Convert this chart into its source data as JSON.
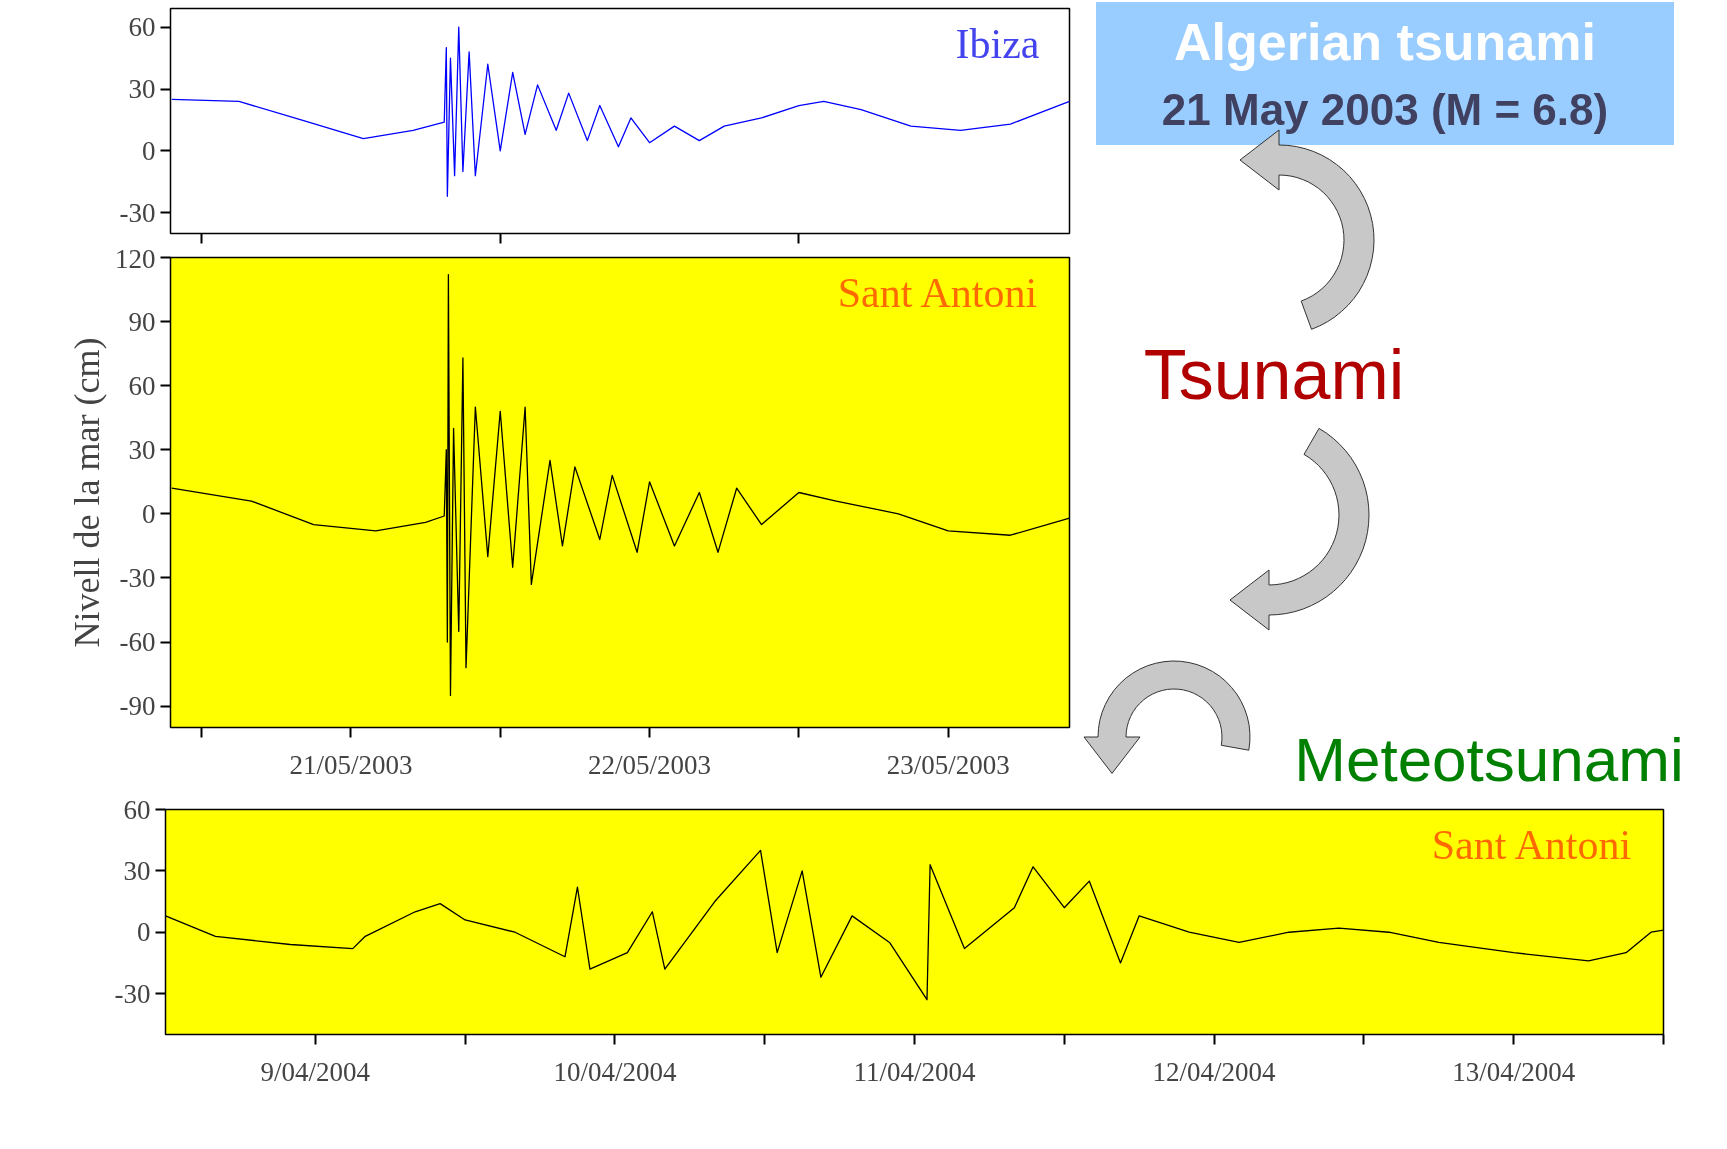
{
  "chart_data": [
    {
      "type": "line",
      "annotations": [
        "Ibiza"
      ],
      "xlim": [
        "2003-05-20T21:30",
        "2003-05-23T21:45"
      ],
      "ylim": [
        -40,
        69
      ],
      "yticks": [
        -30,
        0,
        30,
        60
      ],
      "xticks": [
        {
          "value": "2003-05-21T00:00",
          "label": null
        },
        {
          "value": "2003-05-22T00:00",
          "label": null
        },
        {
          "value": "2003-05-23T00:00",
          "label": null
        }
      ],
      "tick_labels": "y",
      "grid": false,
      "marker": "none",
      "line_style": "solid",
      "x": [
        "2003-05-20T21:36",
        "2003-05-21T03:00",
        "2003-05-21T08:00",
        "2003-05-21T13:00",
        "2003-05-21T17:00",
        "2003-05-21T19:30",
        "2003-05-21T19:40",
        "2003-05-21T19:45",
        "2003-05-21T20:00",
        "2003-05-21T20:20",
        "2003-05-21T20:40",
        "2003-05-21T21:00",
        "2003-05-21T21:30",
        "2003-05-21T22:00",
        "2003-05-21T23:00",
        "2003-05-22T00:00",
        "2003-05-22T01:00",
        "2003-05-22T02:00",
        "2003-05-22T03:00",
        "2003-05-22T04:30",
        "2003-05-22T05:30",
        "2003-05-22T07:00",
        "2003-05-22T08:00",
        "2003-05-22T09:30",
        "2003-05-22T10:30",
        "2003-05-22T12:00",
        "2003-05-22T14:00",
        "2003-05-22T16:00",
        "2003-05-22T18:00",
        "2003-05-22T21:00",
        "2003-05-23T00:00",
        "2003-05-23T02:00",
        "2003-05-23T05:00",
        "2003-05-23T09:00",
        "2003-05-23T13:00",
        "2003-05-23T17:00",
        "2003-05-23T21:45"
      ],
      "series": [
        {
          "color": "#0000ff",
          "values": [
            25,
            24,
            15,
            6,
            10,
            14,
            50,
            -22,
            45,
            -12,
            60,
            -10,
            48,
            -12,
            42,
            0,
            38,
            8,
            32,
            10,
            28,
            5,
            22,
            2,
            16,
            4,
            12,
            5,
            12,
            16,
            22,
            24,
            20,
            12,
            10,
            13,
            24
          ]
        }
      ]
    },
    {
      "type": "line",
      "annotations": [
        "Sant Antoni"
      ],
      "ylabel": "Nivell de la mar (cm)",
      "xlim": [
        "2003-05-20T21:30",
        "2003-05-23T21:45"
      ],
      "ylim": [
        -100,
        120
      ],
      "yticks": [
        -90,
        -60,
        -30,
        0,
        30,
        60,
        90,
        120
      ],
      "xticks": [
        {
          "value": "2003-05-21T00:00",
          "label": null
        },
        {
          "value": "2003-05-21T12:00",
          "label": "21/05/2003"
        },
        {
          "value": "2003-05-22T00:00",
          "label": null
        },
        {
          "value": "2003-05-22T12:00",
          "label": "22/05/2003"
        },
        {
          "value": "2003-05-23T00:00",
          "label": null
        },
        {
          "value": "2003-05-23T12:00",
          "label": "23/05/2003"
        }
      ],
      "grid": false,
      "marker": "none",
      "line_style": "solid",
      "x": [
        "2003-05-20T21:36",
        "2003-05-21T04:00",
        "2003-05-21T09:00",
        "2003-05-21T14:00",
        "2003-05-21T18:00",
        "2003-05-21T19:30",
        "2003-05-21T19:40",
        "2003-05-21T19:45",
        "2003-05-21T19:50",
        "2003-05-21T20:00",
        "2003-05-21T20:15",
        "2003-05-21T20:40",
        "2003-05-21T21:00",
        "2003-05-21T21:15",
        "2003-05-21T22:00",
        "2003-05-21T23:00",
        "2003-05-22T00:00",
        "2003-05-22T01:00",
        "2003-05-22T02:00",
        "2003-05-22T02:30",
        "2003-05-22T04:00",
        "2003-05-22T05:00",
        "2003-05-22T06:00",
        "2003-05-22T08:00",
        "2003-05-22T09:00",
        "2003-05-22T11:00",
        "2003-05-22T12:00",
        "2003-05-22T14:00",
        "2003-05-22T16:00",
        "2003-05-22T17:30",
        "2003-05-22T19:00",
        "2003-05-22T21:00",
        "2003-05-23T00:00",
        "2003-05-23T03:00",
        "2003-05-23T08:00",
        "2003-05-23T12:00",
        "2003-05-23T17:00",
        "2003-05-23T21:45"
      ],
      "series": [
        {
          "color": "#000000",
          "values": [
            12,
            6,
            -5,
            -8,
            -4,
            -1,
            30,
            -60,
            112,
            -85,
            40,
            -55,
            73,
            -72,
            50,
            -20,
            48,
            -25,
            50,
            -33,
            25,
            -15,
            22,
            -12,
            18,
            -18,
            15,
            -15,
            10,
            -18,
            12,
            -5,
            10,
            6,
            0,
            -8,
            -10,
            -2
          ]
        }
      ]
    },
    {
      "type": "line",
      "annotations": [
        "Sant Antoni"
      ],
      "xlim": [
        "2004-04-09T00:00",
        "2004-04-14T00:00"
      ],
      "ylim": [
        -50,
        60
      ],
      "yticks": [
        -30,
        0,
        30,
        60
      ],
      "xticks": [
        {
          "value": "2004-04-09T12:00",
          "label": "9/04/2004"
        },
        {
          "value": "2004-04-10T00:00",
          "label": null
        },
        {
          "value": "2004-04-10T12:00",
          "label": "10/04/2004"
        },
        {
          "value": "2004-04-11T00:00",
          "label": null
        },
        {
          "value": "2004-04-11T12:00",
          "label": "11/04/2004"
        },
        {
          "value": "2004-04-12T00:00",
          "label": null
        },
        {
          "value": "2004-04-12T12:00",
          "label": "12/04/2004"
        },
        {
          "value": "2004-04-13T00:00",
          "label": null
        },
        {
          "value": "2004-04-13T12:00",
          "label": "13/04/2004"
        },
        {
          "value": "2004-04-14T00:00",
          "label": null
        }
      ],
      "grid": false,
      "marker": "none",
      "line_style": "solid",
      "x": [
        "2004-04-09T00:00",
        "2004-04-09T04:00",
        "2004-04-09T10:00",
        "2004-04-09T15:00",
        "2004-04-09T16:00",
        "2004-04-09T20:00",
        "2004-04-09T22:00",
        "2004-04-10T00:00",
        "2004-04-10T04:00",
        "2004-04-10T08:00",
        "2004-04-10T09:00",
        "2004-04-10T10:00",
        "2004-04-10T13:00",
        "2004-04-10T15:00",
        "2004-04-10T16:00",
        "2004-04-10T20:00",
        "2004-04-10T23:40",
        "2004-04-11T01:00",
        "2004-04-11T03:00",
        "2004-04-11T04:30",
        "2004-04-11T07:00",
        "2004-04-11T10:00",
        "2004-04-11T13:00",
        "2004-04-11T13:15",
        "2004-04-11T16:00",
        "2004-04-11T20:00",
        "2004-04-11T21:30",
        "2004-04-12T00:00",
        "2004-04-12T02:00",
        "2004-04-12T04:30",
        "2004-04-12T06:00",
        "2004-04-12T10:00",
        "2004-04-12T14:00",
        "2004-04-12T18:00",
        "2004-04-12T22:00",
        "2004-04-13T02:00",
        "2004-04-13T06:00",
        "2004-04-13T12:00",
        "2004-04-13T18:00",
        "2004-04-13T21:00",
        "2004-04-13T23:00",
        "2004-04-14T00:00"
      ],
      "series": [
        {
          "color": "#000000",
          "values": [
            8,
            -2,
            -6,
            -8,
            -2,
            10,
            14,
            6,
            0,
            -12,
            22,
            -18,
            -10,
            10,
            -18,
            15,
            40,
            -10,
            30,
            -22,
            8,
            -5,
            -33,
            33,
            -8,
            12,
            32,
            12,
            25,
            -15,
            8,
            0,
            -5,
            0,
            2,
            0,
            -5,
            -10,
            -14,
            -10,
            0,
            1
          ]
        }
      ]
    },
    {
      "type": "other",
      "annotations": [
        "Algerian tsunami",
        "21 May 2003 (M = 6.8)",
        "Tsunami",
        "Meteotsunami"
      ]
    }
  ]
}
